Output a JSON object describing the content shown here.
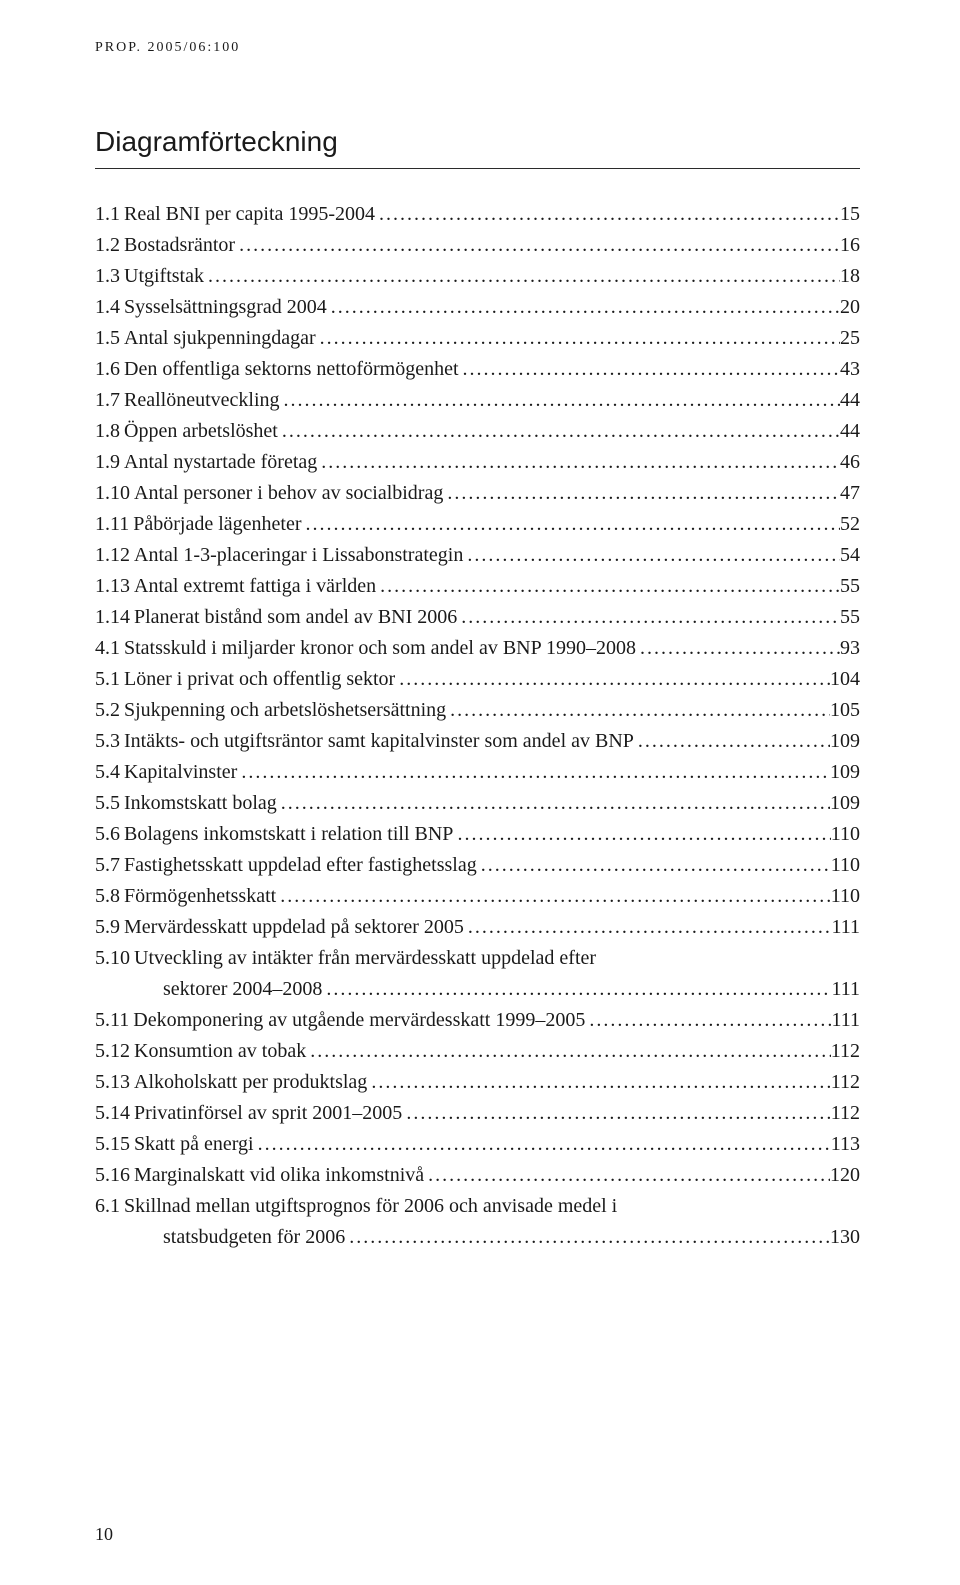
{
  "running_head": "PROP. 2005/06:100",
  "title": "Diagramförteckning",
  "page_number": "10",
  "toc": [
    {
      "num": "1.1",
      "label": "Real BNI per capita 1995-2004",
      "page": "15"
    },
    {
      "num": "1.2",
      "label": "Bostadsräntor",
      "page": "16"
    },
    {
      "num": "1.3",
      "label": "Utgiftstak",
      "page": "18"
    },
    {
      "num": "1.4",
      "label": "Sysselsättningsgrad 2004",
      "page": "20"
    },
    {
      "num": "1.5",
      "label": "Antal sjukpenningdagar",
      "page": "25"
    },
    {
      "num": "1.6",
      "label": "Den offentliga sektorns nettoförmögenhet",
      "page": "43"
    },
    {
      "num": "1.7",
      "label": "Reallöneutveckling",
      "page": "44"
    },
    {
      "num": "1.8",
      "label": "Öppen arbetslöshet",
      "page": "44"
    },
    {
      "num": "1.9",
      "label": "Antal nystartade företag",
      "page": "46"
    },
    {
      "num": "1.10",
      "label": "Antal personer i behov av socialbidrag",
      "page": "47"
    },
    {
      "num": "1.11",
      "label": "Påbörjade lägenheter",
      "page": "52"
    },
    {
      "num": "1.12",
      "label": "Antal 1-3-placeringar i Lissabonstrategin",
      "page": "54"
    },
    {
      "num": "1.13",
      "label": "Antal extremt fattiga i världen",
      "page": "55"
    },
    {
      "num": "1.14",
      "label": "Planerat bistånd som andel av BNI 2006",
      "page": "55"
    },
    {
      "num": "4.1",
      "label": "Statsskuld i miljarder kronor och som andel av BNP 1990–2008",
      "page": "93"
    },
    {
      "num": "5.1",
      "label": "Löner i privat och offentlig sektor",
      "page": "104"
    },
    {
      "num": "5.2",
      "label": "Sjukpenning och arbetslöshetsersättning",
      "page": "105"
    },
    {
      "num": "5.3",
      "label": "Intäkts- och utgiftsräntor samt kapitalvinster som andel av BNP",
      "page": "109"
    },
    {
      "num": "5.4",
      "label": "Kapitalvinster",
      "page": "109"
    },
    {
      "num": "5.5",
      "label": "Inkomstskatt bolag",
      "page": "109"
    },
    {
      "num": "5.6",
      "label": "Bolagens inkomstskatt i relation till BNP",
      "page": "110"
    },
    {
      "num": "5.7",
      "label": "Fastighetsskatt uppdelad efter fastighetsslag",
      "page": "110"
    },
    {
      "num": "5.8",
      "label": "Förmögenhetsskatt",
      "page": "110"
    },
    {
      "num": "5.9",
      "label": "Mervärdesskatt uppdelad på sektorer 2005",
      "page": "111"
    },
    {
      "num": "5.10",
      "label": "Utveckling av intäkter från mervärdesskatt uppdelad efter",
      "no_page": true
    },
    {
      "continuation": true,
      "label": "sektorer 2004–2008",
      "page": "111"
    },
    {
      "num": "5.11",
      "label": "Dekomponering av utgående mervärdesskatt 1999–2005",
      "page": "111"
    },
    {
      "num": "5.12",
      "label": "Konsumtion av tobak",
      "page": "112"
    },
    {
      "num": "5.13",
      "label": "Alkoholskatt per produktslag",
      "page": "112"
    },
    {
      "num": "5.14",
      "label": "Privatinförsel av sprit 2001–2005",
      "page": "112"
    },
    {
      "num": "5.15",
      "label": "Skatt på energi",
      "page": "113"
    },
    {
      "num": "5.16",
      "label": "Marginalskatt vid olika inkomstnivå",
      "page": "120"
    },
    {
      "num": "6.1",
      "label": "Skillnad mellan utgiftsprognos för 2006 och anvisade medel i",
      "no_page": true
    },
    {
      "continuation": true,
      "label": "statsbudgeten för 2006",
      "page": "130"
    }
  ],
  "colors": {
    "text": "#1a1a1a",
    "rule": "#2b2b2b",
    "background": "#ffffff"
  },
  "typography": {
    "body_fontsize_pt": 15,
    "title_fontsize_pt": 21,
    "running_head_fontsize_pt": 10.5,
    "font_family_body": "Georgia, serif",
    "font_family_title": "Arial, sans-serif"
  }
}
